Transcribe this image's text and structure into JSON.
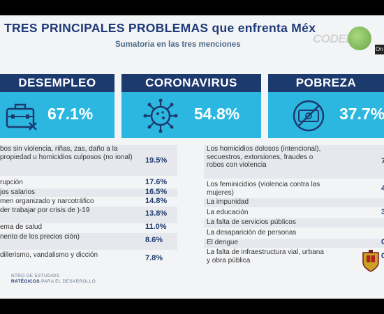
{
  "title": "TRES PRINCIPALES PROBLEMAS que enfrenta Méx",
  "subtitle": "Sumatoria en las tres menciones",
  "overlay_logo": {
    "text": "CODEL",
    "tag": "On"
  },
  "cards": [
    {
      "label": "DESEMPLEO",
      "value": "67.1%",
      "icon": "briefcase-icon"
    },
    {
      "label": "CORONAVIRUS",
      "value": "54.8%",
      "icon": "virus-icon"
    },
    {
      "label": "POBREZA",
      "value": "37.7%",
      "icon": "no-money-icon"
    }
  ],
  "left_list": [
    {
      "label": "bos sin violencia, riñas, zas, daño a la propiedad u homicidios culposos (no ional)",
      "value": "19.5%"
    },
    {
      "label": "rupción",
      "value": "17.6%"
    },
    {
      "label": "jos salarios",
      "value": "16.5%"
    },
    {
      "label": "men organizado y narcotráfico",
      "value": "14.8%"
    },
    {
      "label": "der trabajar por crisis de )-19",
      "value": "13.8%"
    },
    {
      "label": "ema de salud",
      "value": "11.0%"
    },
    {
      "label": "nento de los precios ción)",
      "value": "8.6%"
    },
    {
      "label": "dillerismo, vandalismo y dicción",
      "value": "7.8%"
    }
  ],
  "right_list": [
    {
      "label": "Los homicidios dolosos (intencional), secuestros, extorsiones, fraudes o robos con violencia",
      "value": "7"
    },
    {
      "label": "Los feminicidios (violencia contra las mujeres)",
      "value": "4"
    },
    {
      "label": "La impunidad",
      "value": ""
    },
    {
      "label": "La educación",
      "value": "3"
    },
    {
      "label": "La falta de servicios públicos",
      "value": ""
    },
    {
      "label": "La desaparición de personas",
      "value": ""
    },
    {
      "label": "El dengue",
      "value": "0"
    },
    {
      "label": "La falta de infraestructura vial, urbana y obra pública",
      "value": "0"
    }
  ],
  "footer": {
    "line1": "NTRO DE ESTUDIOS",
    "line2a": "RATÉGICOS",
    "line2b": " PARA EL DESARROLLO"
  },
  "colors": {
    "navy": "#1d3a6f",
    "cyan": "#2cb7e0",
    "background": "#f3f4f6"
  }
}
